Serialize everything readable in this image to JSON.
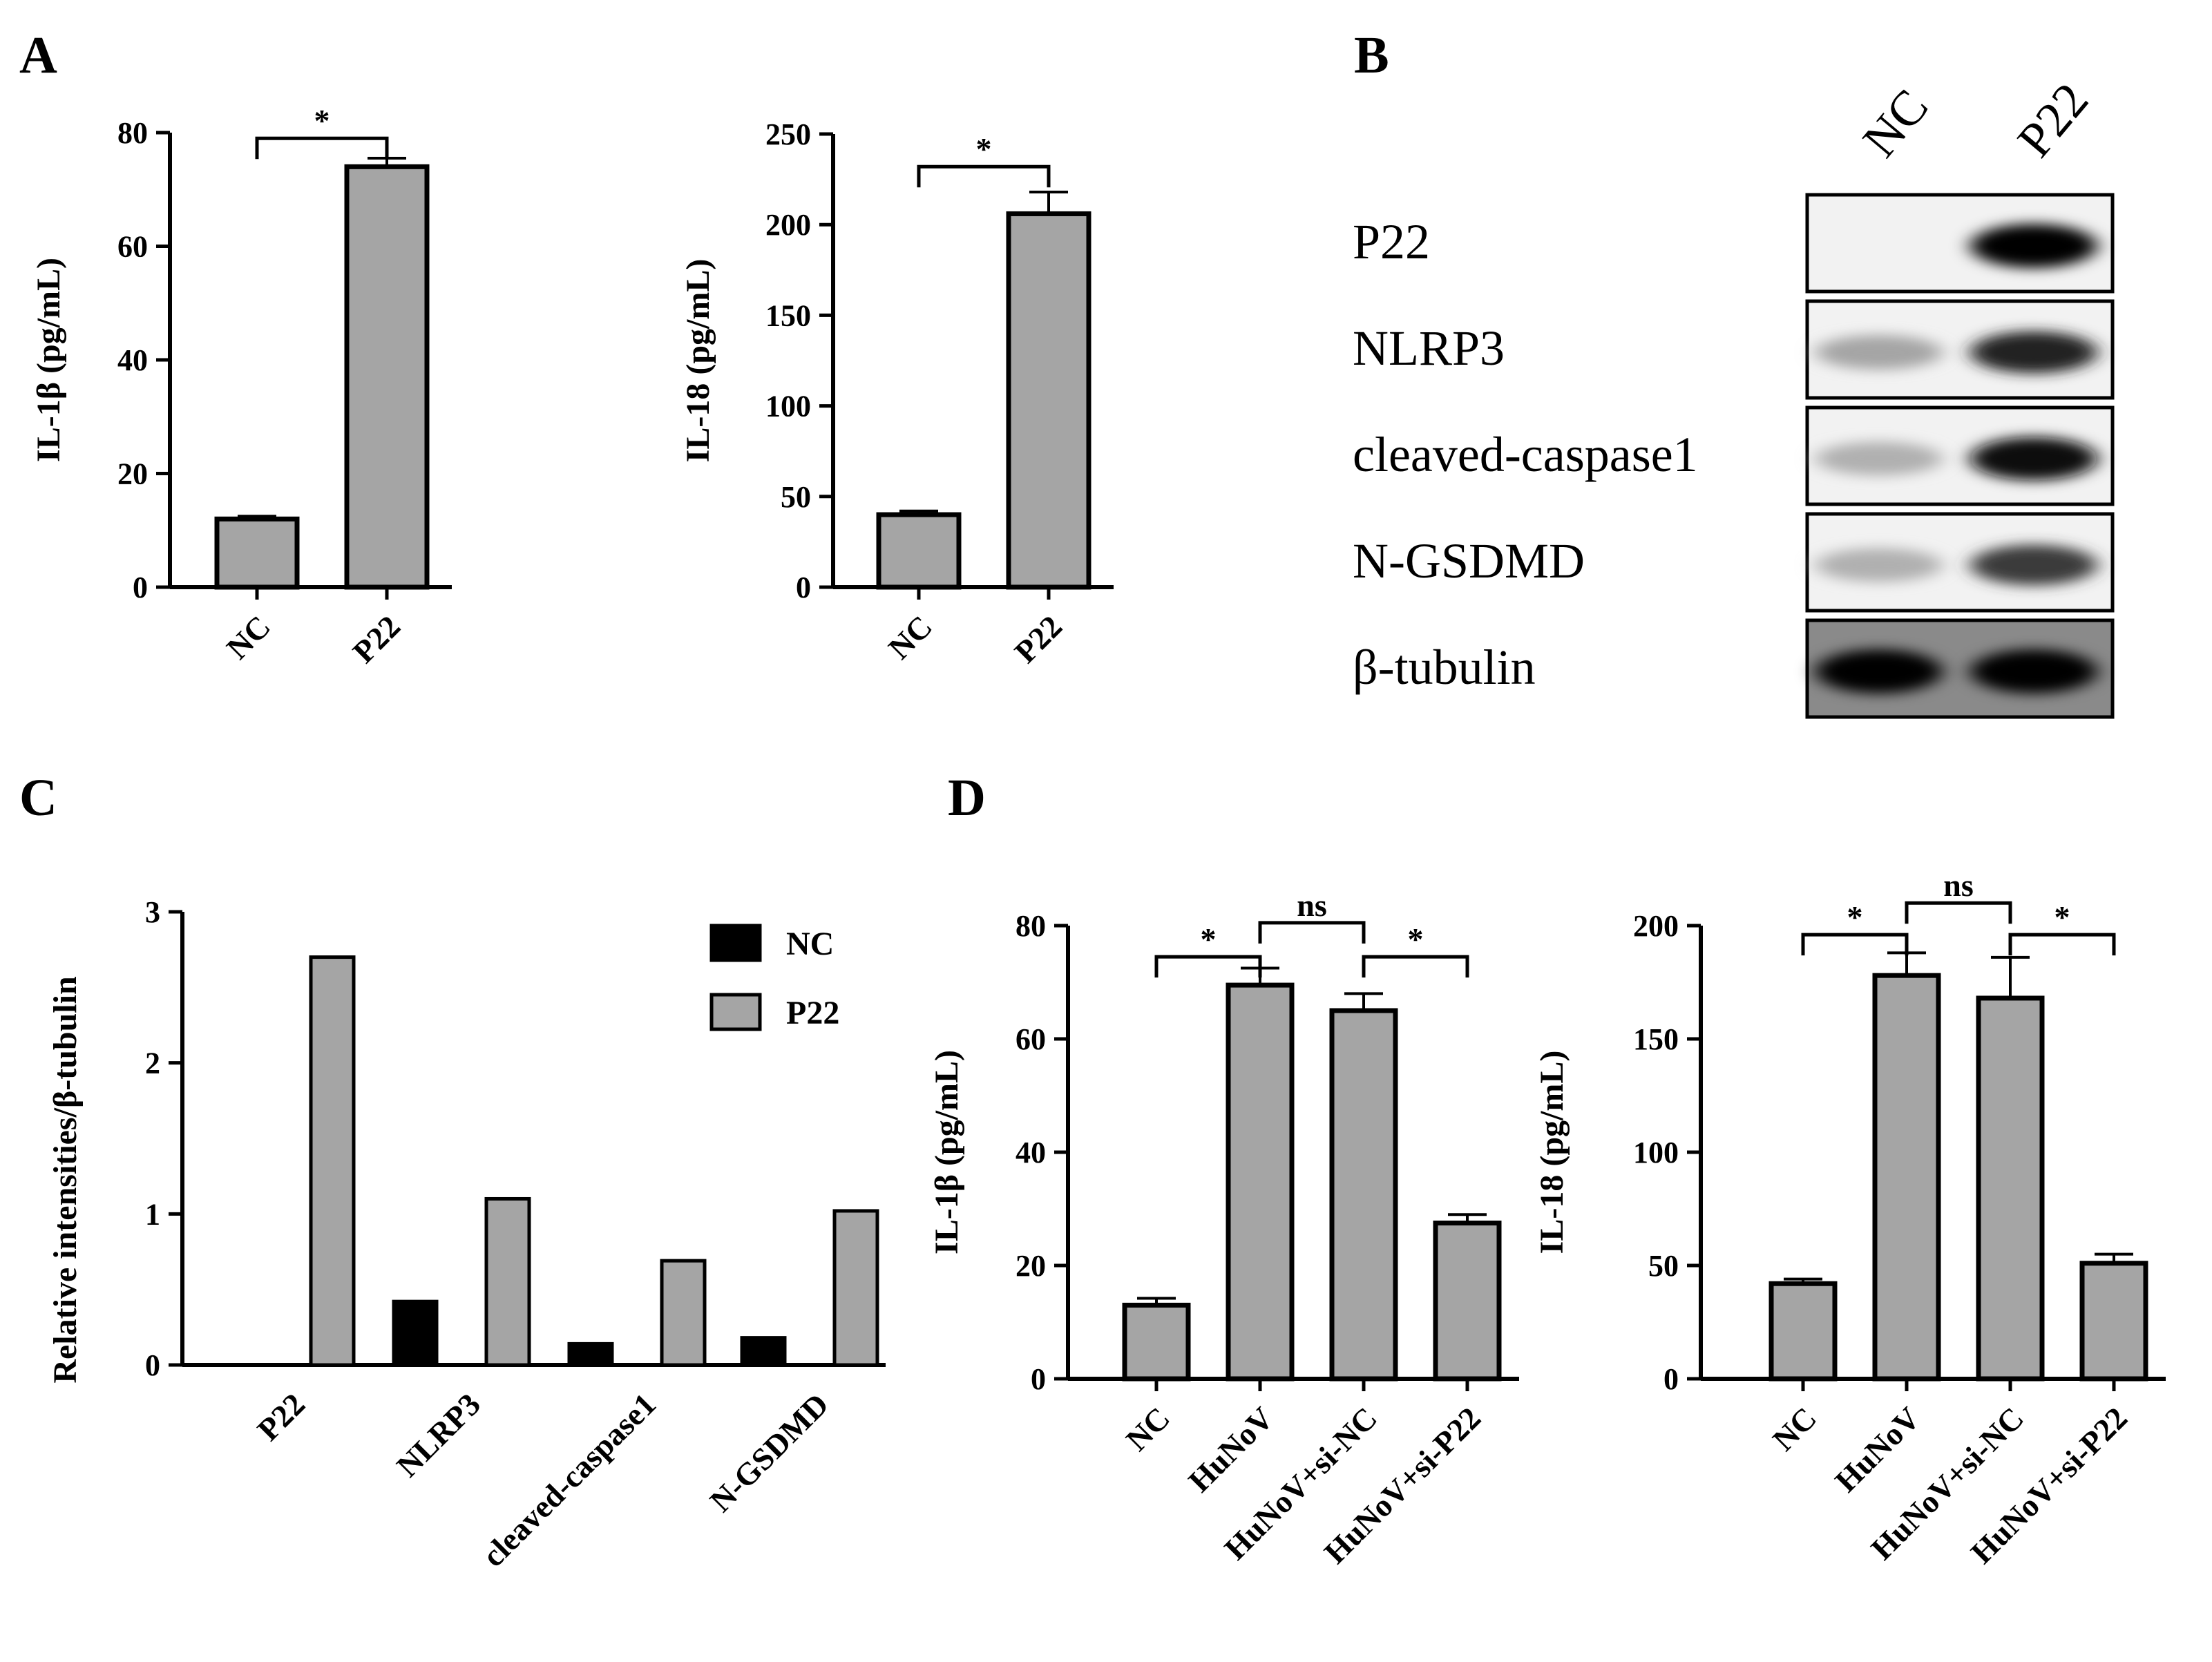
{
  "panels": {
    "A_left": {
      "letter": "A",
      "chart_data": {
        "type": "bar",
        "categories": [
          "NC",
          "P22"
        ],
        "values": [
          12,
          74
        ],
        "errors": [
          0.5,
          1.5
        ],
        "ylabel": "IL-1β (pg/mL)",
        "ylim": [
          0,
          80
        ],
        "yticks": [
          0,
          20,
          40,
          60,
          80
        ],
        "bar_color": "#a5a5a5",
        "significance": [
          {
            "from": 0,
            "to": 1,
            "label": "*"
          }
        ]
      }
    },
    "A_right": {
      "chart_data": {
        "type": "bar",
        "categories": [
          "NC",
          "P22"
        ],
        "values": [
          40,
          206
        ],
        "errors": [
          2,
          12
        ],
        "ylabel": "IL-18 (pg/mL)",
        "ylim": [
          0,
          250
        ],
        "yticks": [
          0,
          50,
          100,
          150,
          200,
          250
        ],
        "bar_color": "#a5a5a5",
        "significance": [
          {
            "from": 0,
            "to": 1,
            "label": "*"
          }
        ]
      }
    },
    "B": {
      "letter": "B",
      "lanes": [
        "NC",
        "P22"
      ],
      "bands": [
        {
          "label": "P22",
          "intensities": [
            0.0,
            1.0
          ]
        },
        {
          "label": "NLRP3",
          "intensities": [
            0.3,
            0.85
          ]
        },
        {
          "label": "cleaved-caspase1",
          "intensities": [
            0.25,
            0.95
          ]
        },
        {
          "label": "N-GSDMD",
          "intensities": [
            0.25,
            0.75
          ]
        },
        {
          "label": "β-tubulin",
          "intensities": [
            1.0,
            1.0
          ]
        }
      ]
    },
    "C": {
      "letter": "C",
      "chart_data": {
        "type": "bar",
        "categories": [
          "P22",
          "NLRP3",
          "cleaved-caspase1",
          "N-GSDMD"
        ],
        "series": [
          {
            "name": "NC",
            "values": [
              0,
              0.42,
              0.14,
              0.18
            ],
            "color": "#000000"
          },
          {
            "name": "P22",
            "values": [
              2.7,
              1.1,
              0.69,
              1.02
            ],
            "color": "#a5a5a5"
          }
        ],
        "ylabel": "Relative intensities/β-tubulin",
        "ylim": [
          0,
          3
        ],
        "yticks": [
          0,
          1,
          2,
          3
        ],
        "legend": "top-right"
      }
    },
    "D_left": {
      "letter": "D",
      "chart_data": {
        "type": "bar",
        "categories": [
          "NC",
          "HuNoV",
          "HuNoV+si-NC",
          "HuNoV+si-P22"
        ],
        "values": [
          13,
          69.5,
          65,
          27.5
        ],
        "errors": [
          1.2,
          3,
          3,
          1.5
        ],
        "ylabel": "IL-1β (pg/mL)",
        "ylim": [
          0,
          80
        ],
        "yticks": [
          0,
          20,
          40,
          60,
          80
        ],
        "bar_color": "#a5a5a5",
        "significance": [
          {
            "from": 0,
            "to": 1,
            "label": "*"
          },
          {
            "from": 1,
            "to": 2,
            "label": "ns"
          },
          {
            "from": 2,
            "to": 3,
            "label": "*"
          }
        ]
      }
    },
    "D_right": {
      "chart_data": {
        "type": "bar",
        "categories": [
          "NC",
          "HuNoV",
          "HuNoV+si-NC",
          "HuNoV+si-P22"
        ],
        "values": [
          42,
          178,
          168,
          51
        ],
        "errors": [
          2,
          10,
          18,
          4
        ],
        "ylabel": "IL-18 (pg/mL)",
        "ylim": [
          0,
          200
        ],
        "yticks": [
          0,
          50,
          100,
          150,
          200
        ],
        "bar_color": "#a5a5a5",
        "significance": [
          {
            "from": 0,
            "to": 1,
            "label": "*"
          },
          {
            "from": 1,
            "to": 2,
            "label": "ns"
          },
          {
            "from": 2,
            "to": 3,
            "label": "*"
          }
        ]
      }
    }
  }
}
